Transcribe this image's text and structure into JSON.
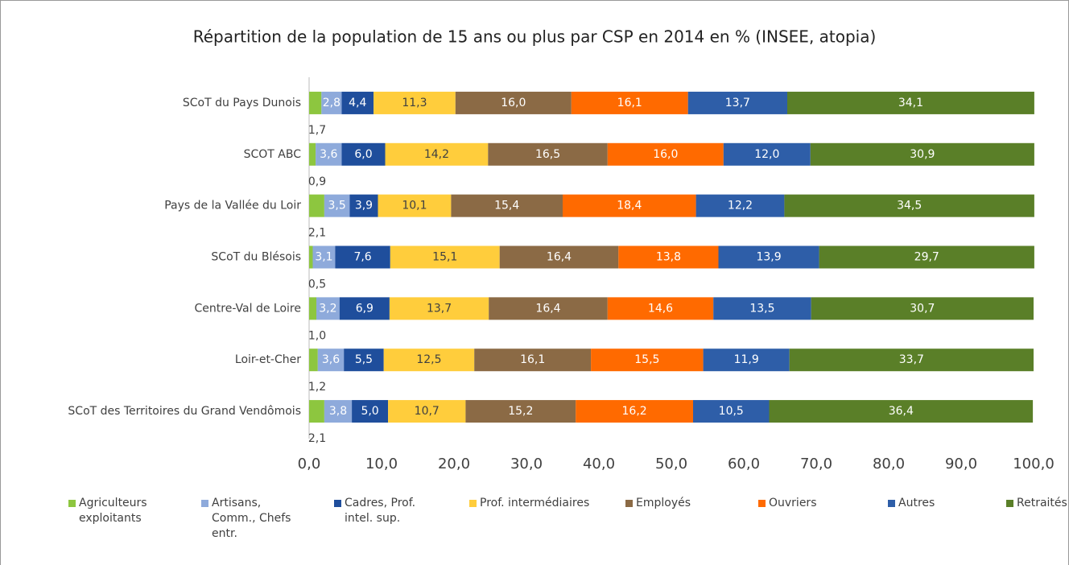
{
  "chart_data": {
    "type": "stacked-barh",
    "title": "Répartition de la population de 15 ans ou plus par CSP en 2014 en % (INSEE, atopia)",
    "categories": [
      "SCoT du Pays Dunois",
      "SCOT ABC",
      "Pays de la Vallée du Loir",
      "SCoT du Blésois",
      "Centre-Val de Loire",
      "Loir-et-Cher",
      "SCoT des Territoires du Grand Vendômois"
    ],
    "series": [
      {
        "name": "Agriculteurs exploitants",
        "color": "#8dc63f",
        "values": [
          1.7,
          0.9,
          2.1,
          0.5,
          1.0,
          1.2,
          2.1
        ],
        "value_labels": [
          "1,7",
          "0,9",
          "2,1",
          "0,5",
          "1,0",
          "1,2",
          "2,1"
        ]
      },
      {
        "name": "Artisans, Comm., Chefs entr.",
        "color": "#8eaadb",
        "values": [
          2.8,
          3.6,
          3.5,
          3.1,
          3.2,
          3.6,
          3.8
        ],
        "value_labels": [
          "2,8",
          "3,6",
          "3,5",
          "3,1",
          "3,2",
          "3,6",
          "3,8"
        ]
      },
      {
        "name": "Cadres, Prof. intel. sup.",
        "color": "#1f4e9c",
        "values": [
          4.4,
          6.0,
          3.9,
          7.6,
          6.9,
          5.5,
          5.0
        ],
        "value_labels": [
          "4,4",
          "6,0",
          "3,9",
          "7,6",
          "6,9",
          "5,5",
          "5,0"
        ]
      },
      {
        "name": "Prof. intermédiaires",
        "color": "#ffcd3c",
        "values": [
          11.3,
          14.2,
          10.1,
          15.1,
          13.7,
          12.5,
          10.7
        ],
        "value_labels": [
          "11,3",
          "14,2",
          "10,1",
          "15,1",
          "13,7",
          "12,5",
          "10,7"
        ]
      },
      {
        "name": "Employés",
        "color": "#8b6a45",
        "values": [
          16.0,
          16.5,
          15.4,
          16.4,
          16.4,
          16.1,
          15.2
        ],
        "value_labels": [
          "16,0",
          "16,5",
          "15,4",
          "16,4",
          "16,4",
          "16,1",
          "15,2"
        ]
      },
      {
        "name": "Ouvriers",
        "color": "#ff6a00",
        "values": [
          16.1,
          16.0,
          18.4,
          13.8,
          14.6,
          15.5,
          16.2
        ],
        "value_labels": [
          "16,1",
          "16,0",
          "18,4",
          "13,8",
          "14,6",
          "15,5",
          "16,2"
        ]
      },
      {
        "name": "Autres",
        "color": "#2e5ea8",
        "values": [
          13.7,
          12.0,
          12.2,
          13.9,
          13.5,
          11.9,
          10.5
        ],
        "value_labels": [
          "13,7",
          "12,0",
          "12,2",
          "13,9",
          "13,5",
          "11,9",
          "10,5"
        ]
      },
      {
        "name": "Retraités",
        "color": "#5a7f28",
        "values": [
          34.1,
          30.9,
          34.5,
          29.7,
          30.7,
          33.7,
          36.4
        ],
        "value_labels": [
          "34,1",
          "30,9",
          "34,5",
          "29,7",
          "30,7",
          "33,7",
          "36,4"
        ]
      }
    ],
    "xlim": [
      0,
      100
    ],
    "xticks": [
      {
        "value": 0,
        "label": "0,0"
      },
      {
        "value": 10,
        "label": "10,0"
      },
      {
        "value": 20,
        "label": "20,0"
      },
      {
        "value": 30,
        "label": "30,0"
      },
      {
        "value": 40,
        "label": "40,0"
      },
      {
        "value": 50,
        "label": "50,0"
      },
      {
        "value": 60,
        "label": "60,0"
      },
      {
        "value": 70,
        "label": "70,0"
      },
      {
        "value": 80,
        "label": "80,0"
      },
      {
        "value": 90,
        "label": "90,0"
      },
      {
        "value": 100,
        "label": "100,0"
      }
    ],
    "legend": "bottom"
  }
}
